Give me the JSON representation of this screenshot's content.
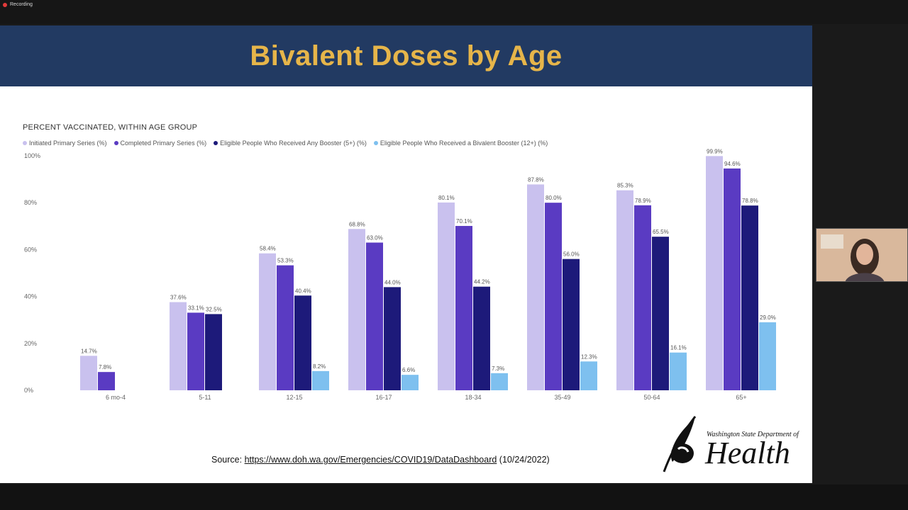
{
  "window": {
    "recording_label": "Recording"
  },
  "slide": {
    "title": "Bivalent Doses by Age",
    "source_prefix": "Source:",
    "source_link": "https://www.doh.wa.gov/Emergencies/COVID19/DataDashboard",
    "source_date": "(10/24/2022)",
    "logo_line1": "Washington State Department of",
    "logo_line2": "Health"
  },
  "colors": {
    "title_band": "#223a62",
    "title_text": "#e6b54a",
    "series": [
      "#c9c1ee",
      "#5a3bc2",
      "#1d1a7a",
      "#7ec0ef"
    ]
  },
  "chart_data": {
    "type": "bar",
    "title": "PERCENT VACCINATED, WITHIN AGE GROUP",
    "xlabel": "",
    "ylabel": "",
    "ylim": [
      0,
      100
    ],
    "yticks": [
      "0%",
      "20%",
      "40%",
      "60%",
      "80%",
      "100%"
    ],
    "categories": [
      "6 mo-4",
      "5-11",
      "12-15",
      "16-17",
      "18-34",
      "35-49",
      "50-64",
      "65+"
    ],
    "series": [
      {
        "name": "Initiated Primary Series (%)",
        "values": [
          14.7,
          37.6,
          58.4,
          68.8,
          80.1,
          87.8,
          85.3,
          99.9
        ],
        "labels": [
          "14.7%",
          "37.6%",
          "58.4%",
          "68.8%",
          "80.1%",
          "87.8%",
          "85.3%",
          "99.9%"
        ]
      },
      {
        "name": "Completed Primary Series (%)",
        "values": [
          7.8,
          33.1,
          53.3,
          63.0,
          70.1,
          80.0,
          78.9,
          94.6
        ],
        "labels": [
          "7.8%",
          "33.1%",
          "53.3%",
          "63.0%",
          "70.1%",
          "80.0%",
          "78.9%",
          "94.6%"
        ]
      },
      {
        "name": "Eligible People Who Received Any Booster (5+) (%)",
        "values": [
          null,
          32.5,
          40.4,
          44.0,
          44.2,
          56.0,
          65.5,
          78.8
        ],
        "labels": [
          "",
          "32.5%",
          "40.4%",
          "44.0%",
          "44.2%",
          "56.0%",
          "65.5%",
          "78.8%"
        ]
      },
      {
        "name": "Eligible People Who Received a Bivalent Booster (12+) (%)",
        "values": [
          null,
          null,
          8.2,
          6.6,
          7.3,
          12.3,
          16.1,
          29.0
        ],
        "labels": [
          "",
          "",
          "8.2%",
          "6.6%",
          "7.3%",
          "12.3%",
          "16.1%",
          "29.0%"
        ]
      }
    ]
  }
}
